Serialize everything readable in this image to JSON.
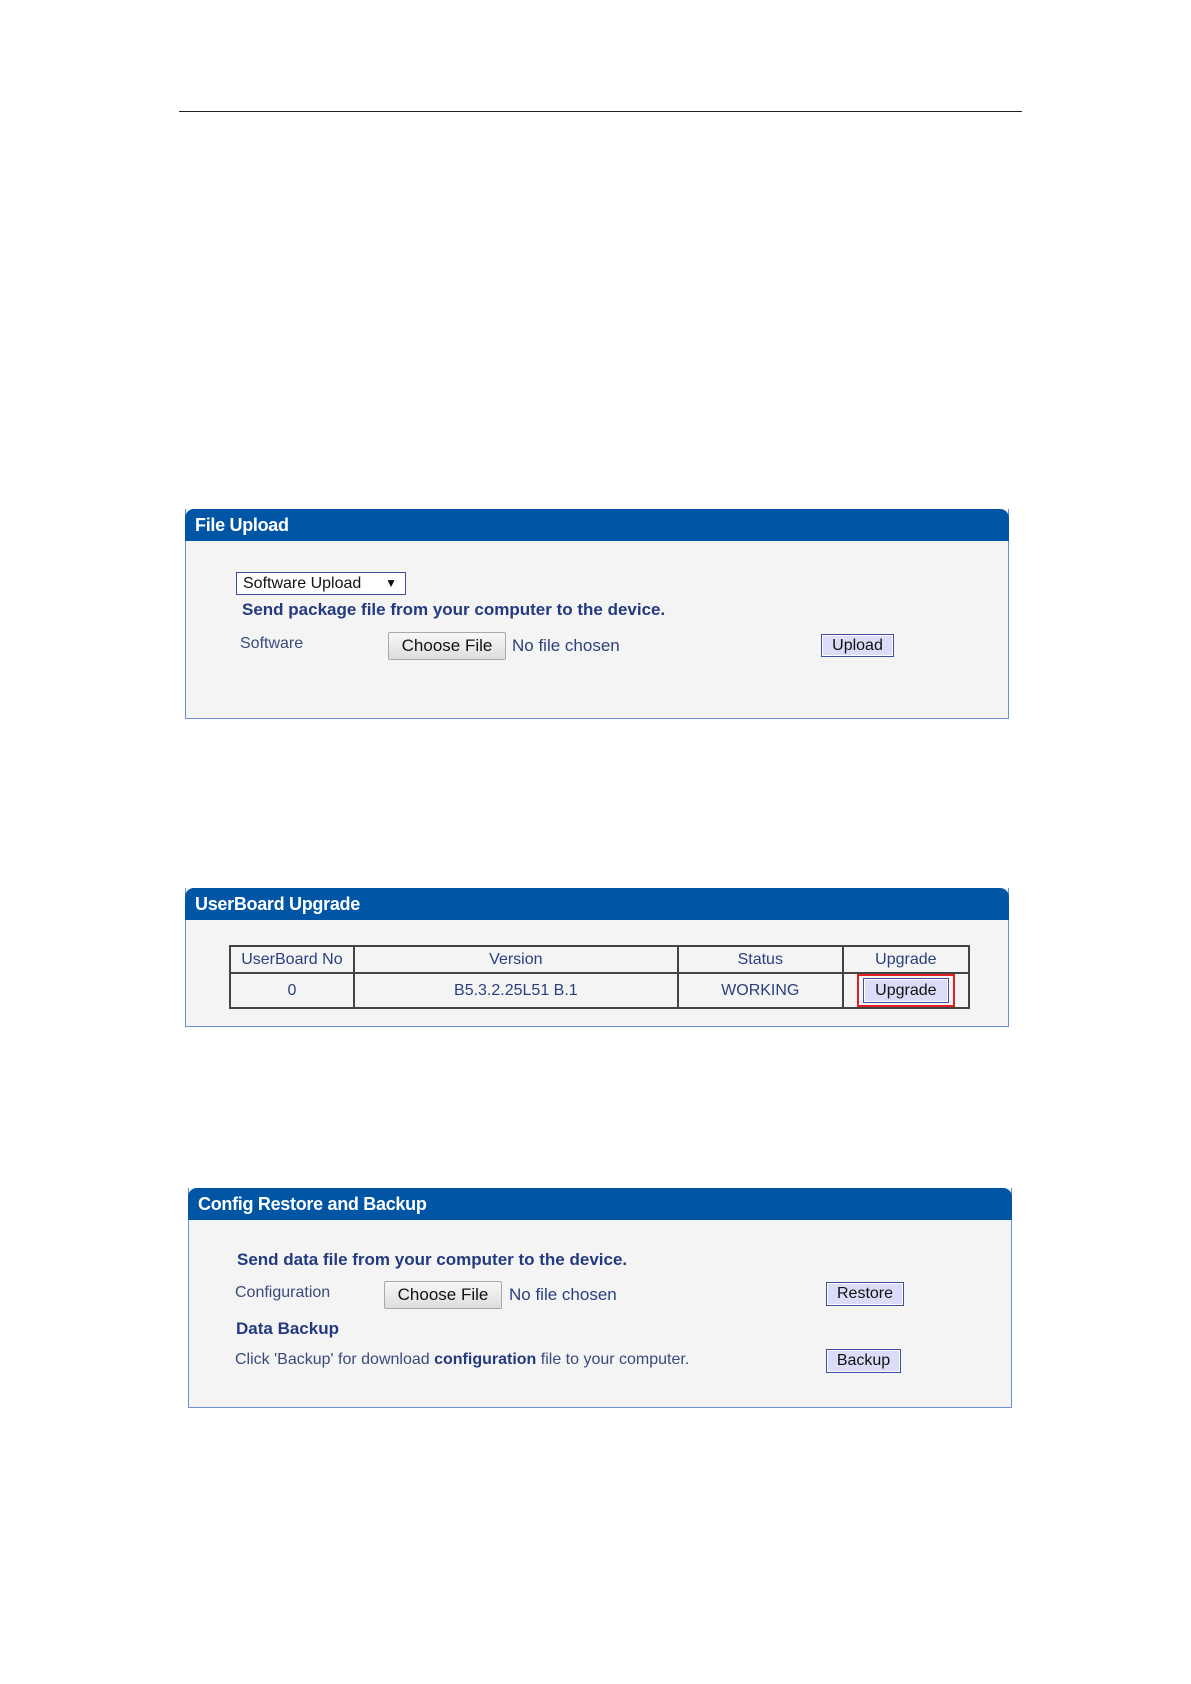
{
  "file_upload": {
    "title": "File Upload",
    "select_value": "Software Upload",
    "description": "Send package file from your computer to the device.",
    "software_label": "Software",
    "choose_file": "Choose File",
    "no_file": "No file chosen",
    "upload_button": "Upload"
  },
  "userboard": {
    "title": "UserBoard Upgrade",
    "headers": [
      "UserBoard No",
      "Version",
      "Status",
      "Upgrade"
    ],
    "rows": [
      {
        "no": "0",
        "version": "B5.3.2.25L51 B.1",
        "status": "WORKING",
        "button": "Upgrade"
      }
    ]
  },
  "config": {
    "title": "Config Restore and Backup",
    "description": "Send data file from your computer to the device.",
    "config_label": "Configuration",
    "choose_file": "Choose File",
    "no_file": "No file chosen",
    "restore_button": "Restore",
    "backup_heading": "Data Backup",
    "backup_text_1": "Click 'Backup' for download ",
    "backup_text_bold": "configuration",
    "backup_text_2": " file to your computer.",
    "backup_button": "Backup"
  },
  "colors": {
    "header": "#0055a5",
    "highlight": "#e02020"
  }
}
